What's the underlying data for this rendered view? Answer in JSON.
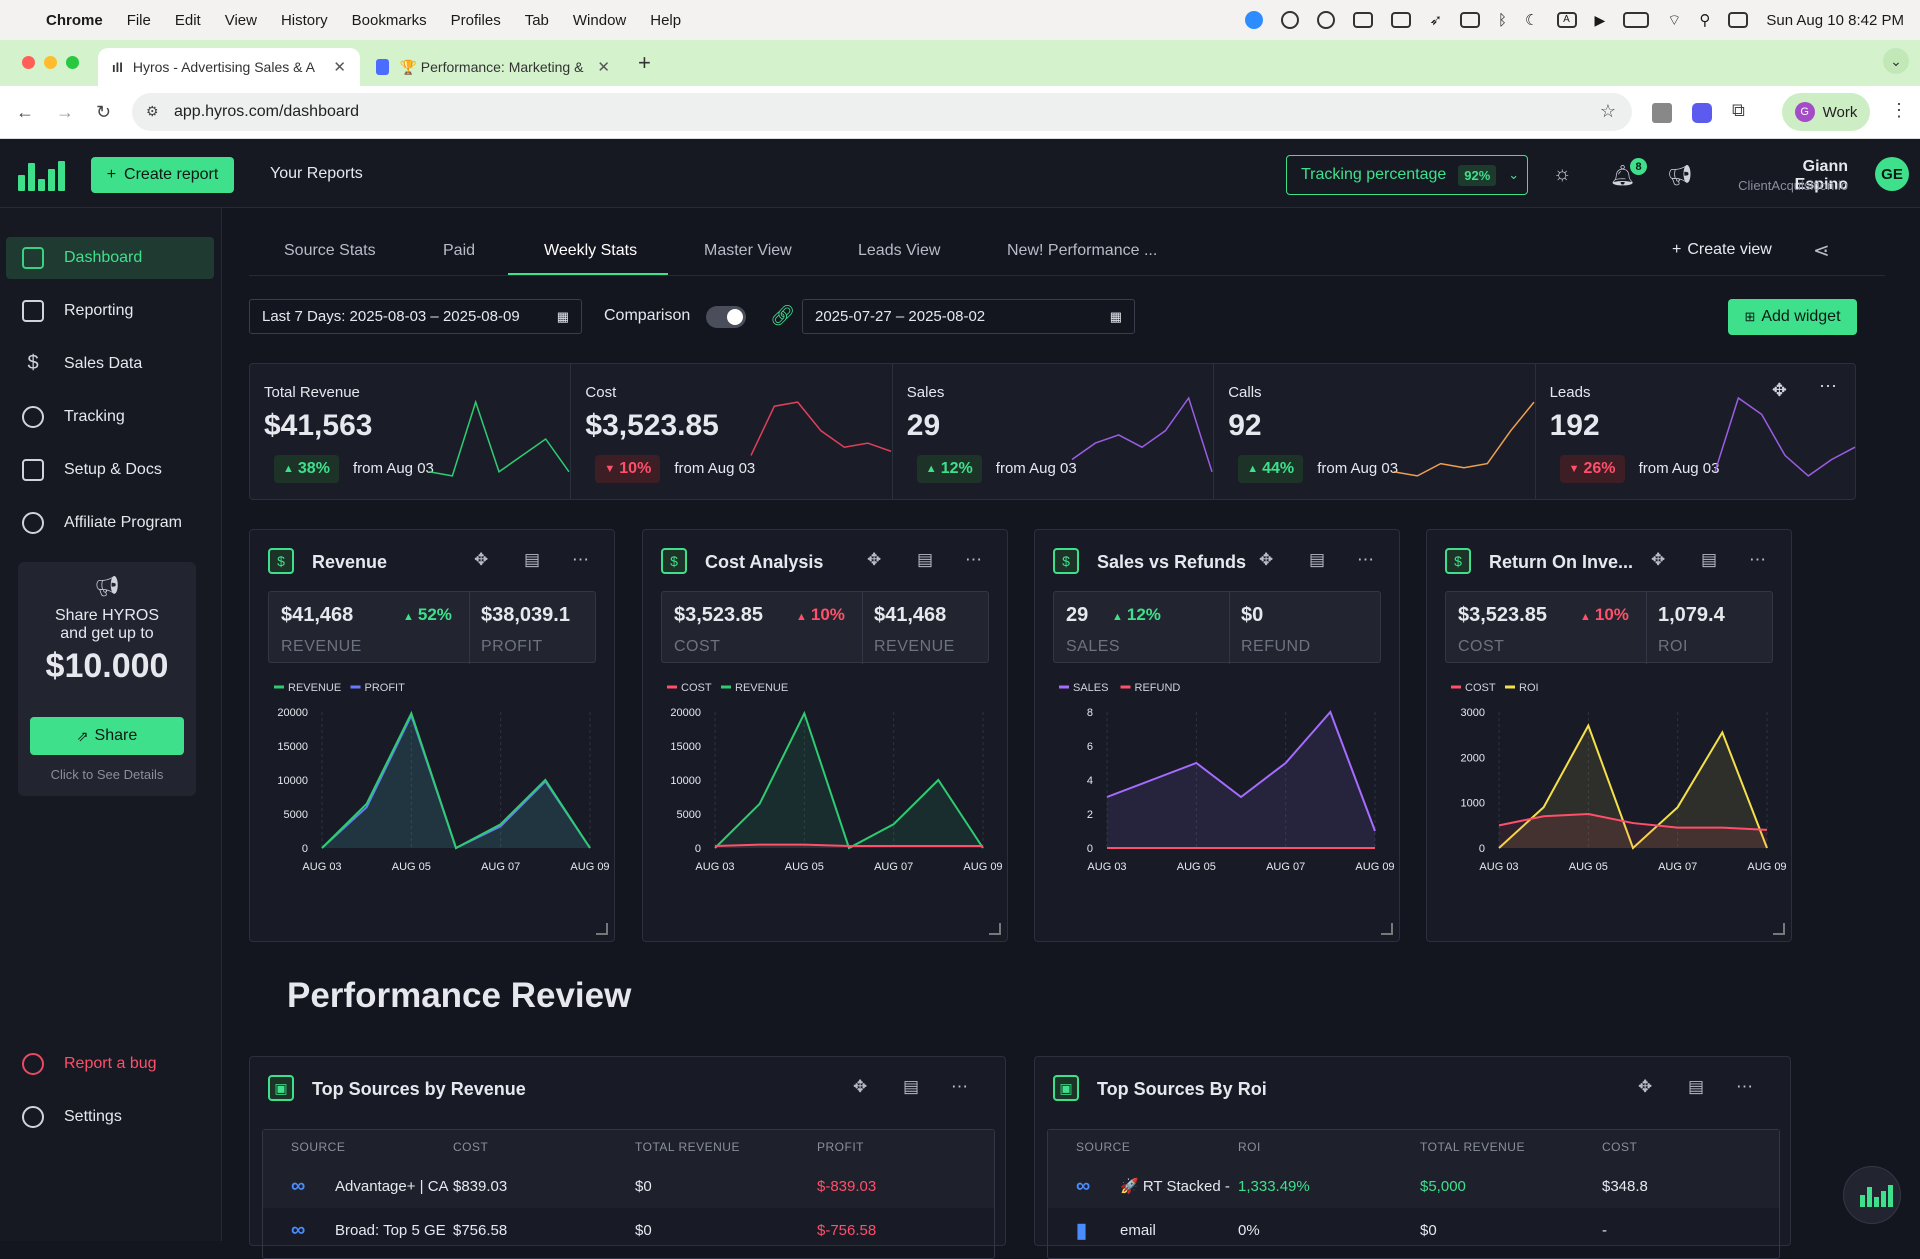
{
  "menubar": {
    "app": "Chrome",
    "items": [
      "File",
      "Edit",
      "View",
      "History",
      "Bookmarks",
      "Profiles",
      "Tab",
      "Window",
      "Help"
    ],
    "datetime": "Sun Aug 10  8:42 PM"
  },
  "browser": {
    "tabs": [
      {
        "title": "Hyros - Advertising Sales & A"
      },
      {
        "title": "🏆 Performance: Marketing &"
      }
    ],
    "url": "app.hyros.com/dashboard",
    "profile_initial": "G",
    "profile": "Work"
  },
  "header": {
    "create_report": "Create report",
    "your_reports": "Your Reports",
    "tracking_label": "Tracking percentage",
    "tracking_pct": "92%",
    "notifications": "8",
    "user_name": "Giann Espino",
    "user_company": "ClientAcquisition.io",
    "user_initials": "GE"
  },
  "sidebar": {
    "items": [
      {
        "label": "Dashboard"
      },
      {
        "label": "Reporting"
      },
      {
        "label": "Sales Data"
      },
      {
        "label": "Tracking"
      },
      {
        "label": "Setup & Docs"
      },
      {
        "label": "Affiliate Program"
      }
    ],
    "promo": {
      "line1": "Share HYROS",
      "line2": "and get up to",
      "amount": "$10.000",
      "button": "Share",
      "details": "Click to See Details"
    },
    "report_bug": "Report a bug",
    "settings": "Settings"
  },
  "views": {
    "tabs": [
      "Source Stats",
      "Paid",
      "Weekly Stats",
      "Master View",
      "Leads View",
      "New! Performance ..."
    ],
    "create_view": "Create view"
  },
  "filters": {
    "date_range": "Last 7 Days: 2025-08-03 – 2025-08-09",
    "comparison_label": "Comparison",
    "comparison_range": "2025-07-27 – 2025-08-02",
    "add_widget": "Add widget"
  },
  "kpis": [
    {
      "label": "Total Revenue",
      "value": "$41,563",
      "change": "38%",
      "dir": "up",
      "from": "from Aug 03",
      "color": "#2ecc71",
      "spark": [
        0.1,
        0.05,
        0.95,
        0.1,
        0.3,
        0.5,
        0.1
      ]
    },
    {
      "label": "Cost",
      "value": "$3,523.85",
      "change": "10%",
      "dir": "down",
      "from": "from Aug 03",
      "color": "#e0405a",
      "spark": [
        0.3,
        0.9,
        0.95,
        0.6,
        0.4,
        0.45,
        0.35
      ]
    },
    {
      "label": "Sales",
      "value": "29",
      "change": "12%",
      "dir": "up",
      "from": "from Aug 03",
      "color": "#9b5de5",
      "spark": [
        0.25,
        0.45,
        0.55,
        0.4,
        0.6,
        1.0,
        0.1
      ]
    },
    {
      "label": "Calls",
      "value": "92",
      "change": "44%",
      "dir": "up",
      "from": "from Aug 03",
      "color": "#f0a050",
      "spark": [
        0.1,
        0.05,
        0.2,
        0.15,
        0.2,
        0.6,
        0.95
      ]
    },
    {
      "label": "Leads",
      "value": "192",
      "change": "26%",
      "dir": "down",
      "from": "from Aug 03",
      "color": "#9b5de5",
      "spark": [
        0.1,
        1.0,
        0.8,
        0.3,
        0.05,
        0.25,
        0.4
      ]
    }
  ],
  "widgets": [
    {
      "title": "Revenue",
      "stat1": {
        "value": "$41,468",
        "change": "52%",
        "dir": "up",
        "label": "REVENUE"
      },
      "stat2": {
        "value": "$38,039.1",
        "label": "PROFIT"
      },
      "chart_data": {
        "type": "area",
        "x": [
          "AUG 03",
          "AUG 04",
          "AUG 05",
          "AUG 06",
          "AUG 07",
          "AUG 08",
          "AUG 09"
        ],
        "x_ticks": [
          "AUG 03",
          "AUG 05",
          "AUG 07",
          "AUG 09"
        ],
        "y_ticks": [
          "20000",
          "15000",
          "10000",
          "5000",
          "0"
        ],
        "ylim": [
          0,
          20000
        ],
        "series": [
          {
            "name": "REVENUE",
            "color": "#2ecc71",
            "values": [
              0,
              6500,
              19800,
              0,
              3500,
              10000,
              0
            ]
          },
          {
            "name": "PROFIT",
            "color": "#6a78ff",
            "values": [
              0,
              6000,
              19500,
              0,
              3200,
              9800,
              0
            ]
          }
        ]
      }
    },
    {
      "title": "Cost Analysis",
      "stat1": {
        "value": "$3,523.85",
        "change": "10%",
        "dir": "down",
        "label": "COST"
      },
      "stat2": {
        "value": "$41,468",
        "label": "REVENUE"
      },
      "chart_data": {
        "type": "area",
        "x": [
          "AUG 03",
          "AUG 04",
          "AUG 05",
          "AUG 06",
          "AUG 07",
          "AUG 08",
          "AUG 09"
        ],
        "x_ticks": [
          "AUG 03",
          "AUG 05",
          "AUG 07",
          "AUG 09"
        ],
        "y_ticks": [
          "20000",
          "15000",
          "10000",
          "5000",
          "0"
        ],
        "ylim": [
          0,
          20000
        ],
        "series": [
          {
            "name": "COST",
            "color": "#ff4f6a",
            "values": [
              300,
              500,
              500,
              300,
              300,
              300,
              300
            ]
          },
          {
            "name": "REVENUE",
            "color": "#2ecc71",
            "values": [
              0,
              6500,
              19800,
              0,
              3500,
              10000,
              0
            ]
          }
        ]
      }
    },
    {
      "title": "Sales vs Refunds",
      "stat1": {
        "value": "29",
        "change": "12%",
        "dir": "up",
        "label": "SALES"
      },
      "stat2": {
        "value": "$0",
        "label": "REFUND"
      },
      "chart_data": {
        "type": "area",
        "x": [
          "AUG 03",
          "AUG 04",
          "AUG 05",
          "AUG 06",
          "AUG 07",
          "AUG 08",
          "AUG 09"
        ],
        "x_ticks": [
          "AUG 03",
          "AUG 05",
          "AUG 07",
          "AUG 09"
        ],
        "y_ticks": [
          "8",
          "6",
          "4",
          "2",
          "0"
        ],
        "ylim": [
          0,
          8
        ],
        "series": [
          {
            "name": "SALES",
            "color": "#a66cff",
            "values": [
              3,
              4,
              5,
              3,
              5,
              8,
              1
            ]
          },
          {
            "name": "REFUND",
            "color": "#ff4f6a",
            "values": [
              0,
              0,
              0,
              0,
              0,
              0,
              0
            ]
          }
        ]
      }
    },
    {
      "title": "Return On Inve...",
      "stat1": {
        "value": "$3,523.85",
        "change": "10%",
        "dir": "down",
        "label": "COST"
      },
      "stat2": {
        "value": "1,079.4",
        "label": "ROI"
      },
      "chart_data": {
        "type": "area",
        "x": [
          "AUG 03",
          "AUG 04",
          "AUG 05",
          "AUG 06",
          "AUG 07",
          "AUG 08",
          "AUG 09"
        ],
        "x_ticks": [
          "AUG 03",
          "AUG 05",
          "AUG 07",
          "AUG 09"
        ],
        "y_ticks": [
          "3000",
          "2000",
          "1000",
          "0"
        ],
        "ylim": [
          0,
          3000
        ],
        "series": [
          {
            "name": "COST",
            "color": "#ff4f6a",
            "values": [
              500,
              700,
              750,
              550,
              450,
              450,
              400
            ]
          },
          {
            "name": "ROI",
            "color": "#f5e04a",
            "values": [
              0,
              900,
              2700,
              0,
              900,
              2550,
              0
            ]
          }
        ]
      }
    }
  ],
  "performance": {
    "title": "Performance Review",
    "tables": [
      {
        "title": "Top Sources by Revenue",
        "columns": [
          "SOURCE",
          "COST",
          "TOTAL REVENUE",
          "PROFIT"
        ],
        "rows": [
          {
            "source": "Advantage+ | CA",
            "c1": "$839.03",
            "c2": "$0",
            "c3": "$-839.03"
          },
          {
            "source": "Broad: Top 5 GE",
            "c1": "$756.58",
            "c2": "$0",
            "c3": "$-756.58"
          }
        ]
      },
      {
        "title": "Top Sources By Roi",
        "columns": [
          "SOURCE",
          "ROI",
          "TOTAL REVENUE",
          "COST"
        ],
        "rows": [
          {
            "source": "🚀 RT Stacked -",
            "c1": "1,333.49%",
            "c2": "$5,000",
            "c3": "$348.8"
          },
          {
            "source": "email",
            "c1": "0%",
            "c2": "$0",
            "c3": "-"
          }
        ]
      }
    ]
  }
}
